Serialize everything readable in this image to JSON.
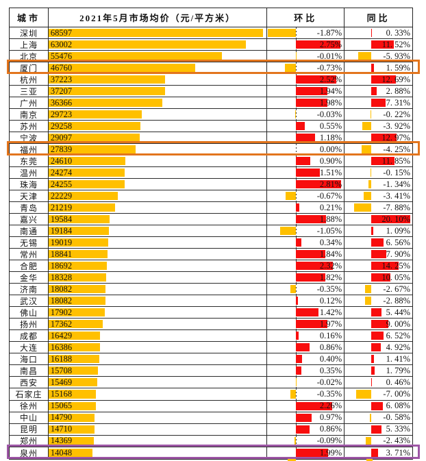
{
  "header": {
    "city": "城市",
    "price": "2021年5月市场均价（元/平方米）",
    "mom": "环比",
    "yoy": "同比"
  },
  "colors": {
    "bar_gold": "#FFC000",
    "bar_red": "#F80E0E",
    "box_orange": "#E2751D",
    "box_purple": "#9D56A5",
    "grid_line": "#222222"
  },
  "rows": [
    {
      "city": "深圳",
      "price": "68597",
      "price_v": 68597,
      "mom": "-1.87%",
      "mom_v": -1.87,
      "yoy": "0. 33%",
      "yoy_v": 0.33
    },
    {
      "city": "上海",
      "price": "63002",
      "price_v": 63002,
      "mom": "2.75%",
      "mom_v": 2.75,
      "yoy": "11. 52%",
      "yoy_v": 11.52
    },
    {
      "city": "北京",
      "price": "55476",
      "price_v": 55476,
      "mom": "-0.01%",
      "mom_v": -0.01,
      "yoy": "-5. 93%",
      "yoy_v": -5.93
    },
    {
      "city": "厦门",
      "price": "46760",
      "price_v": 46760,
      "mom": "-0.73%",
      "mom_v": -0.73,
      "yoy": "1. 59%",
      "yoy_v": 1.59,
      "box": "orange"
    },
    {
      "city": "杭州",
      "price": "37223",
      "price_v": 37223,
      "mom": "2.52%",
      "mom_v": 2.52,
      "yoy": "12. 69%",
      "yoy_v": 12.69
    },
    {
      "city": "三亚",
      "price": "37207",
      "price_v": 37207,
      "mom": "1.94%",
      "mom_v": 1.94,
      "yoy": "2. 88%",
      "yoy_v": 2.88
    },
    {
      "city": "广州",
      "price": "36366",
      "price_v": 36366,
      "mom": "1.98%",
      "mom_v": 1.98,
      "yoy": "7. 31%",
      "yoy_v": 7.31
    },
    {
      "city": "南京",
      "price": "29723",
      "price_v": 29723,
      "mom": "-0.03%",
      "mom_v": -0.03,
      "yoy": "-0. 22%",
      "yoy_v": -0.22
    },
    {
      "city": "苏州",
      "price": "29258",
      "price_v": 29258,
      "mom": "0.55%",
      "mom_v": 0.55,
      "yoy": "-3. 92%",
      "yoy_v": -3.92
    },
    {
      "city": "宁波",
      "price": "29097",
      "price_v": 29097,
      "mom": "1.18%",
      "mom_v": 1.18,
      "yoy": "12. 97%",
      "yoy_v": 12.97
    },
    {
      "city": "福州",
      "price": "27839",
      "price_v": 27839,
      "mom": "0.00%",
      "mom_v": 0.0,
      "yoy": "-4. 25%",
      "yoy_v": -4.25,
      "box": "orange"
    },
    {
      "city": "东莞",
      "price": "24610",
      "price_v": 24610,
      "mom": "0.90%",
      "mom_v": 0.9,
      "yoy": "11. 85%",
      "yoy_v": 11.85
    },
    {
      "city": "温州",
      "price": "24274",
      "price_v": 24274,
      "mom": "1.51%",
      "mom_v": 1.51,
      "yoy": "-0. 15%",
      "yoy_v": -0.15
    },
    {
      "city": "珠海",
      "price": "24255",
      "price_v": 24255,
      "mom": "2.81%",
      "mom_v": 2.81,
      "yoy": "-1. 34%",
      "yoy_v": -1.34
    },
    {
      "city": "天津",
      "price": "22229",
      "price_v": 22229,
      "mom": "-0.67%",
      "mom_v": -0.67,
      "yoy": "-3. 41%",
      "yoy_v": -3.41
    },
    {
      "city": "青岛",
      "price": "21219",
      "price_v": 21219,
      "mom": "0.21%",
      "mom_v": 0.21,
      "yoy": "-7. 88%",
      "yoy_v": -7.88
    },
    {
      "city": "嘉兴",
      "price": "19584",
      "price_v": 19584,
      "mom": "1.88%",
      "mom_v": 1.88,
      "yoy": "20. 10%",
      "yoy_v": 20.1
    },
    {
      "city": "南通",
      "price": "19184",
      "price_v": 19184,
      "mom": "-1.05%",
      "mom_v": -1.05,
      "yoy": "1. 09%",
      "yoy_v": 1.09
    },
    {
      "city": "无锡",
      "price": "19019",
      "price_v": 19019,
      "mom": "0.34%",
      "mom_v": 0.34,
      "yoy": "6. 56%",
      "yoy_v": 6.56
    },
    {
      "city": "常州",
      "price": "18841",
      "price_v": 18841,
      "mom": "1.84%",
      "mom_v": 1.84,
      "yoy": "7. 90%",
      "yoy_v": 7.9
    },
    {
      "city": "合肥",
      "price": "18692",
      "price_v": 18692,
      "mom": "2.32%",
      "mom_v": 2.32,
      "yoy": "14. 25%",
      "yoy_v": 14.25
    },
    {
      "city": "金华",
      "price": "18328",
      "price_v": 18328,
      "mom": "1.82%",
      "mom_v": 1.82,
      "yoy": "10. 05%",
      "yoy_v": 10.05
    },
    {
      "city": "济南",
      "price": "18082",
      "price_v": 18082,
      "mom": "-0.35%",
      "mom_v": -0.35,
      "yoy": "-2. 67%",
      "yoy_v": -2.67
    },
    {
      "city": "武汉",
      "price": "18082",
      "price_v": 18082,
      "mom": "0.12%",
      "mom_v": 0.12,
      "yoy": "-2. 88%",
      "yoy_v": -2.88
    },
    {
      "city": "佛山",
      "price": "17902",
      "price_v": 17902,
      "mom": "1.42%",
      "mom_v": 1.42,
      "yoy": "5. 44%",
      "yoy_v": 5.44
    },
    {
      "city": "扬州",
      "price": "17362",
      "price_v": 17362,
      "mom": "1.97%",
      "mom_v": 1.97,
      "yoy": "9. 00%",
      "yoy_v": 9.0
    },
    {
      "city": "成都",
      "price": "16429",
      "price_v": 16429,
      "mom": "0.16%",
      "mom_v": 0.16,
      "yoy": "6. 52%",
      "yoy_v": 6.52
    },
    {
      "city": "大连",
      "price": "16386",
      "price_v": 16386,
      "mom": "0.86%",
      "mom_v": 0.86,
      "yoy": "4. 92%",
      "yoy_v": 4.92
    },
    {
      "city": "海口",
      "price": "16188",
      "price_v": 16188,
      "mom": "0.40%",
      "mom_v": 0.4,
      "yoy": "1. 41%",
      "yoy_v": 1.41
    },
    {
      "city": "南昌",
      "price": "15708",
      "price_v": 15708,
      "mom": "0.35%",
      "mom_v": 0.35,
      "yoy": "1. 79%",
      "yoy_v": 1.79
    },
    {
      "city": "西安",
      "price": "15469",
      "price_v": 15469,
      "mom": "-0.02%",
      "mom_v": -0.02,
      "yoy": "0. 46%",
      "yoy_v": 0.46
    },
    {
      "city": "石家庄",
      "price": "15168",
      "price_v": 15168,
      "mom": "-0.35%",
      "mom_v": -0.35,
      "yoy": "-7. 00%",
      "yoy_v": -7.0
    },
    {
      "city": "徐州",
      "price": "15065",
      "price_v": 15065,
      "mom": "2.26%",
      "mom_v": 2.26,
      "yoy": "6. 08%",
      "yoy_v": 6.08
    },
    {
      "city": "中山",
      "price": "14790",
      "price_v": 14790,
      "mom": "0.97%",
      "mom_v": 0.97,
      "yoy": "-0. 58%",
      "yoy_v": -0.58
    },
    {
      "city": "昆明",
      "price": "14710",
      "price_v": 14710,
      "mom": "0.86%",
      "mom_v": 0.86,
      "yoy": "5. 33%",
      "yoy_v": 5.33
    },
    {
      "city": "郑州",
      "price": "14369",
      "price_v": 14369,
      "mom": "-0.09%",
      "mom_v": -0.09,
      "yoy": "-2. 43%",
      "yoy_v": -2.43
    },
    {
      "city": "泉州",
      "price": "14048",
      "price_v": 14048,
      "mom": "1.99%",
      "mom_v": 1.99,
      "yoy": "3. 71%",
      "yoy_v": 3.71,
      "box": "purple"
    }
  ],
  "highlighted_rows": [
    {
      "city": "厦门",
      "color": "orange"
    },
    {
      "city": "福州",
      "color": "orange"
    },
    {
      "city": "泉州",
      "color": "purple"
    }
  ],
  "chart_data": {
    "type": "bar",
    "title": "2021年5月市场均价（元/平方米）",
    "categories": [
      "深圳",
      "上海",
      "北京",
      "厦门",
      "杭州",
      "三亚",
      "广州",
      "南京",
      "苏州",
      "宁波",
      "福州",
      "东莞",
      "温州",
      "珠海",
      "天津",
      "青岛",
      "嘉兴",
      "南通",
      "无锡",
      "常州",
      "合肥",
      "金华",
      "济南",
      "武汉",
      "佛山",
      "扬州",
      "成都",
      "大连",
      "海口",
      "南昌",
      "西安",
      "石家庄",
      "徐州",
      "中山",
      "昆明",
      "郑州",
      "泉州"
    ],
    "series": [
      {
        "name": "市场均价(元/平方米)",
        "values": [
          68597,
          63002,
          55476,
          46760,
          37223,
          37207,
          36366,
          29723,
          29258,
          29097,
          27839,
          24610,
          24274,
          24255,
          22229,
          21219,
          19584,
          19184,
          19019,
          18841,
          18692,
          18328,
          18082,
          18082,
          17902,
          17362,
          16429,
          16386,
          16188,
          15708,
          15469,
          15168,
          15065,
          14790,
          14710,
          14369,
          14048
        ],
        "color": "#FFC000",
        "range": [
          0,
          68597
        ]
      },
      {
        "name": "环比",
        "values": [
          -1.87,
          2.75,
          -0.01,
          -0.73,
          2.52,
          1.94,
          1.98,
          -0.03,
          0.55,
          1.18,
          0.0,
          0.9,
          1.51,
          2.81,
          -0.67,
          0.21,
          1.88,
          -1.05,
          0.34,
          1.84,
          2.32,
          1.82,
          -0.35,
          0.12,
          1.42,
          1.97,
          0.16,
          0.86,
          0.4,
          0.35,
          -0.02,
          -0.35,
          2.26,
          0.97,
          0.86,
          -0.09,
          1.99
        ],
        "color_positive": "#F80E0E",
        "color_negative": "#FFC000",
        "range": [
          -1.87,
          2.81
        ],
        "unit": "%"
      },
      {
        "name": "同比",
        "values": [
          0.33,
          11.52,
          -5.93,
          1.59,
          12.69,
          2.88,
          7.31,
          -0.22,
          -3.92,
          12.97,
          -4.25,
          11.85,
          -0.15,
          -1.34,
          -3.41,
          -7.88,
          20.1,
          1.09,
          6.56,
          7.9,
          14.25,
          10.05,
          -2.67,
          -2.88,
          5.44,
          9.0,
          6.52,
          4.92,
          1.41,
          1.79,
          0.46,
          -7.0,
          6.08,
          -0.58,
          5.33,
          -2.43,
          3.71
        ],
        "color_positive": "#F80E0E",
        "color_negative": "#FFC000",
        "range": [
          -7.88,
          20.1
        ],
        "unit": "%"
      }
    ],
    "orientation": "horizontal",
    "legend": "none",
    "grid": "table-borders"
  }
}
